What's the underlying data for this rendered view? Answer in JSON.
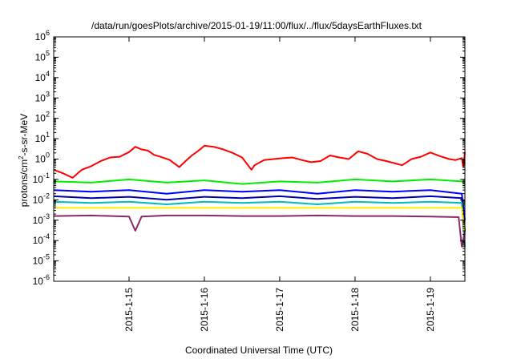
{
  "chart_data": {
    "type": "line",
    "title": "/data/run/goesPlots/archive/2015-01-19/11:00/flux/../flux/5daysEarthFluxes.txt",
    "xlabel": "Coordinated Universal Time (UTC)",
    "ylabel_parts": [
      "protons/cm",
      "2",
      "-s-sr-MeV"
    ],
    "y_scale": "log",
    "ylim_exp": [
      -6,
      6
    ],
    "y_tick_exponents": [
      -6,
      -5,
      -4,
      -3,
      -2,
      -1,
      0,
      1,
      2,
      3,
      4,
      5,
      6
    ],
    "y_tick_base": "10",
    "xlim": [
      "2015-01-14 00:00",
      "2015-01-19 11:00"
    ],
    "x_ticks": [
      "2015-1-15",
      "2015-1-16",
      "2015-1-17",
      "2015-1-18",
      "2015-1-19"
    ],
    "grid": false,
    "legend": "none",
    "series": [
      {
        "color": "#ff0000",
        "points": [
          [
            "2015-01-14 00:00",
            0.3
          ],
          [
            "2015-01-14 03:00",
            0.2
          ],
          [
            "2015-01-14 06:00",
            0.12
          ],
          [
            "2015-01-14 09:00",
            0.3
          ],
          [
            "2015-01-14 12:00",
            0.45
          ],
          [
            "2015-01-14 15:00",
            0.8
          ],
          [
            "2015-01-14 18:00",
            1.2
          ],
          [
            "2015-01-14 21:00",
            1.3
          ],
          [
            "2015-01-15 00:00",
            2.2
          ],
          [
            "2015-01-15 02:00",
            4.0
          ],
          [
            "2015-01-15 04:00",
            3.0
          ],
          [
            "2015-01-15 06:00",
            2.6
          ],
          [
            "2015-01-15 08:00",
            1.6
          ],
          [
            "2015-01-15 10:00",
            1.3
          ],
          [
            "2015-01-15 13:00",
            0.9
          ],
          [
            "2015-01-15 16:00",
            0.4
          ],
          [
            "2015-01-15 18:00",
            0.8
          ],
          [
            "2015-01-15 20:00",
            1.5
          ],
          [
            "2015-01-15 22:00",
            2.5
          ],
          [
            "2015-01-16 00:00",
            4.5
          ],
          [
            "2015-01-16 03:00",
            4.0
          ],
          [
            "2015-01-16 06:00",
            3.0
          ],
          [
            "2015-01-16 09:00",
            2.0
          ],
          [
            "2015-01-16 12:00",
            1.2
          ],
          [
            "2015-01-16 15:00",
            0.3
          ],
          [
            "2015-01-16 16:00",
            0.5
          ],
          [
            "2015-01-16 19:00",
            0.9
          ],
          [
            "2015-01-16 22:00",
            1.0
          ],
          [
            "2015-01-17 01:00",
            1.1
          ],
          [
            "2015-01-17 04:00",
            1.2
          ],
          [
            "2015-01-17 07:00",
            0.9
          ],
          [
            "2015-01-17 10:00",
            0.7
          ],
          [
            "2015-01-17 13:00",
            0.8
          ],
          [
            "2015-01-17 16:00",
            1.5
          ],
          [
            "2015-01-17 19:00",
            1.2
          ],
          [
            "2015-01-17 22:00",
            1.0
          ],
          [
            "2015-01-18 01:00",
            2.4
          ],
          [
            "2015-01-18 04:00",
            1.8
          ],
          [
            "2015-01-18 07:00",
            1.0
          ],
          [
            "2015-01-18 10:00",
            0.8
          ],
          [
            "2015-01-18 13:00",
            0.6
          ],
          [
            "2015-01-18 15:00",
            0.5
          ],
          [
            "2015-01-18 18:00",
            1.0
          ],
          [
            "2015-01-18 21:00",
            1.3
          ],
          [
            "2015-01-19 00:00",
            2.1
          ],
          [
            "2015-01-19 03:00",
            1.4
          ],
          [
            "2015-01-19 06:00",
            1.0
          ],
          [
            "2015-01-19 08:00",
            0.9
          ],
          [
            "2015-01-19 10:00",
            1.1
          ],
          [
            "2015-01-19 10:30",
            0.4
          ],
          [
            "2015-01-19 11:00",
            2.2
          ]
        ]
      },
      {
        "color": "#00ee00",
        "points": [
          [
            "2015-01-14 00:00",
            0.08
          ],
          [
            "2015-01-14 12:00",
            0.07
          ],
          [
            "2015-01-15 00:00",
            0.1
          ],
          [
            "2015-01-15 12:00",
            0.07
          ],
          [
            "2015-01-16 00:00",
            0.09
          ],
          [
            "2015-01-16 12:00",
            0.06
          ],
          [
            "2015-01-17 00:00",
            0.08
          ],
          [
            "2015-01-17 12:00",
            0.07
          ],
          [
            "2015-01-18 00:00",
            0.1
          ],
          [
            "2015-01-18 12:00",
            0.08
          ],
          [
            "2015-01-19 00:00",
            0.1
          ],
          [
            "2015-01-19 10:00",
            0.08
          ],
          [
            "2015-01-19 11:00",
            0.06
          ]
        ]
      },
      {
        "color": "#0000ff",
        "points": [
          [
            "2015-01-14 00:00",
            0.03
          ],
          [
            "2015-01-14 12:00",
            0.025
          ],
          [
            "2015-01-15 00:00",
            0.03
          ],
          [
            "2015-01-15 12:00",
            0.02
          ],
          [
            "2015-01-16 00:00",
            0.03
          ],
          [
            "2015-01-16 12:00",
            0.025
          ],
          [
            "2015-01-17 00:00",
            0.03
          ],
          [
            "2015-01-17 12:00",
            0.02
          ],
          [
            "2015-01-18 00:00",
            0.03
          ],
          [
            "2015-01-18 12:00",
            0.025
          ],
          [
            "2015-01-19 00:00",
            0.03
          ],
          [
            "2015-01-19 10:00",
            0.02
          ],
          [
            "2015-01-19 11:00",
            0.001
          ]
        ]
      },
      {
        "color": "#0000aa",
        "points": [
          [
            "2015-01-14 00:00",
            0.015
          ],
          [
            "2015-01-14 12:00",
            0.012
          ],
          [
            "2015-01-15 00:00",
            0.014
          ],
          [
            "2015-01-15 12:00",
            0.01
          ],
          [
            "2015-01-16 00:00",
            0.014
          ],
          [
            "2015-01-16 12:00",
            0.012
          ],
          [
            "2015-01-17 00:00",
            0.015
          ],
          [
            "2015-01-17 12:00",
            0.011
          ],
          [
            "2015-01-18 00:00",
            0.014
          ],
          [
            "2015-01-18 12:00",
            0.012
          ],
          [
            "2015-01-19 00:00",
            0.015
          ],
          [
            "2015-01-19 10:00",
            0.012
          ],
          [
            "2015-01-19 11:00",
            0.0003
          ]
        ]
      },
      {
        "color": "#00bbbb",
        "points": [
          [
            "2015-01-14 00:00",
            0.008
          ],
          [
            "2015-01-14 12:00",
            0.007
          ],
          [
            "2015-01-15 00:00",
            0.008
          ],
          [
            "2015-01-15 12:00",
            0.006
          ],
          [
            "2015-01-16 00:00",
            0.008
          ],
          [
            "2015-01-16 12:00",
            0.007
          ],
          [
            "2015-01-17 00:00",
            0.008
          ],
          [
            "2015-01-17 12:00",
            0.006
          ],
          [
            "2015-01-18 00:00",
            0.008
          ],
          [
            "2015-01-18 12:00",
            0.007
          ],
          [
            "2015-01-19 00:00",
            0.008
          ],
          [
            "2015-01-19 10:00",
            0.007
          ],
          [
            "2015-01-19 11:00",
            5e-05
          ]
        ]
      },
      {
        "color": "#ffee00",
        "points": [
          [
            "2015-01-14 00:00",
            0.004
          ],
          [
            "2015-01-15 00:00",
            0.004
          ],
          [
            "2015-01-16 00:00",
            0.004
          ],
          [
            "2015-01-17 00:00",
            0.004
          ],
          [
            "2015-01-18 00:00",
            0.004
          ],
          [
            "2015-01-19 00:00",
            0.004
          ],
          [
            "2015-01-19 10:00",
            0.004
          ],
          [
            "2015-01-19 11:00",
            0.0002
          ]
        ]
      },
      {
        "color": "#8b2a6b",
        "points": [
          [
            "2015-01-14 00:00",
            0.0016
          ],
          [
            "2015-01-14 12:00",
            0.0017
          ],
          [
            "2015-01-15 00:00",
            0.0015
          ],
          [
            "2015-01-15 02:00",
            0.0003
          ],
          [
            "2015-01-15 04:00",
            0.0015
          ],
          [
            "2015-01-15 12:00",
            0.0017
          ],
          [
            "2015-01-16 00:00",
            0.0017
          ],
          [
            "2015-01-16 12:00",
            0.0016
          ],
          [
            "2015-01-17 00:00",
            0.0016
          ],
          [
            "2015-01-17 12:00",
            0.0017
          ],
          [
            "2015-01-18 00:00",
            0.0016
          ],
          [
            "2015-01-18 12:00",
            0.0016
          ],
          [
            "2015-01-19 00:00",
            0.0015
          ],
          [
            "2015-01-19 09:00",
            0.0014
          ],
          [
            "2015-01-19 10:00",
            5e-05
          ],
          [
            "2015-01-19 11:00",
            0.0003
          ]
        ]
      }
    ]
  }
}
